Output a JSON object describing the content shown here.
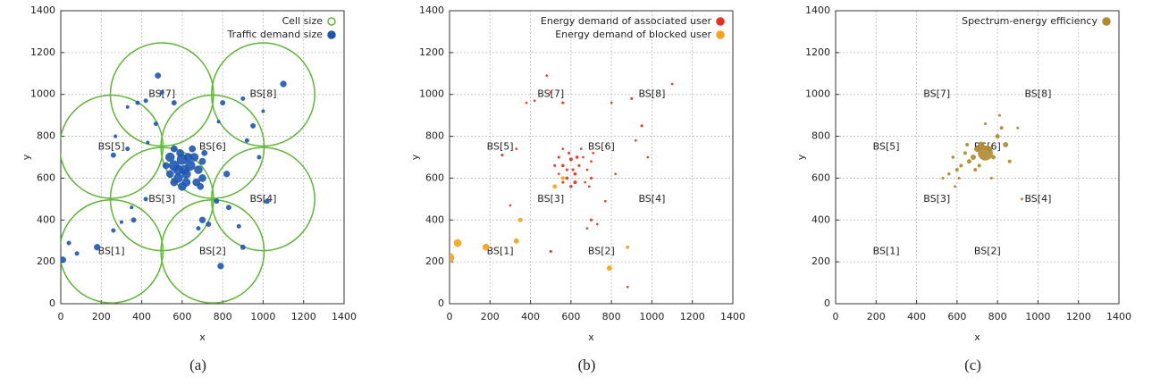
{
  "chart_data": [
    {
      "type": "scatter",
      "caption": "(a)",
      "xlabel": "x",
      "ylabel": "y",
      "xlim": [
        0,
        1400
      ],
      "ylim": [
        0,
        1400
      ],
      "xticks": [
        0,
        200,
        400,
        600,
        800,
        1000,
        1200,
        1400
      ],
      "yticks": [
        0,
        200,
        400,
        600,
        800,
        1000,
        1200,
        1400
      ],
      "grid": true,
      "legend": "top-right",
      "annotations": [
        {
          "text": "BS[1]",
          "x": 250,
          "y": 250
        },
        {
          "text": "BS[2]",
          "x": 750,
          "y": 250
        },
        {
          "text": "BS[3]",
          "x": 500,
          "y": 500
        },
        {
          "text": "BS[4]",
          "x": 1000,
          "y": 500
        },
        {
          "text": "BS[5]",
          "x": 250,
          "y": 750
        },
        {
          "text": "BS[6]",
          "x": 750,
          "y": 750
        },
        {
          "text": "BS[7]",
          "x": 500,
          "y": 1000
        },
        {
          "text": "BS[8]",
          "x": 1000,
          "y": 1000
        }
      ],
      "series": [
        {
          "name": "Cell size",
          "color": "#5db535",
          "marker": "open",
          "x": [
            250,
            750,
            500,
            1000,
            250,
            750,
            500,
            1000
          ],
          "y": [
            250,
            250,
            500,
            500,
            750,
            750,
            1000,
            1000
          ],
          "sizes": [
            255,
            255,
            255,
            255,
            255,
            255,
            255,
            255
          ]
        },
        {
          "name": "Traffic demand size",
          "color": "#1f56b0",
          "marker": "filled",
          "x": [
            540,
            560,
            580,
            600,
            620,
            640,
            660,
            580,
            620,
            560,
            680,
            700,
            540,
            600,
            650,
            590,
            700,
            520,
            630,
            670,
            560,
            610,
            710,
            690,
            180,
            40,
            10,
            360,
            420,
            480,
            500,
            560,
            800,
            900,
            1000,
            1100,
            380,
            330,
            260,
            330,
            270,
            790,
            900,
            880,
            300,
            260,
            700,
            730,
            680,
            770,
            950,
            920,
            820,
            980,
            1020,
            830,
            80,
            350,
            420,
            780,
            470,
            430
          ],
          "y": [
            700,
            660,
            640,
            690,
            620,
            660,
            700,
            600,
            580,
            580,
            640,
            600,
            620,
            560,
            740,
            720,
            680,
            660,
            700,
            580,
            740,
            640,
            720,
            560,
            270,
            290,
            210,
            400,
            970,
            1090,
            1010,
            960,
            960,
            980,
            920,
            1050,
            960,
            940,
            710,
            740,
            800,
            180,
            270,
            370,
            390,
            350,
            400,
            380,
            360,
            490,
            850,
            780,
            620,
            700,
            490,
            460,
            240,
            460,
            500,
            870,
            860,
            770
          ],
          "sizes": [
            22,
            25,
            24,
            26,
            22,
            24,
            20,
            22,
            20,
            18,
            20,
            18,
            18,
            20,
            16,
            18,
            16,
            16,
            20,
            18,
            16,
            22,
            14,
            16,
            15,
            10,
            15,
            12,
            10,
            14,
            10,
            12,
            12,
            10,
            8,
            15,
            10,
            8,
            12,
            10,
            8,
            15,
            12,
            10,
            8,
            10,
            15,
            12,
            10,
            12,
            12,
            10,
            15,
            10,
            12,
            12,
            10,
            8,
            10,
            8,
            10,
            8
          ]
        }
      ]
    },
    {
      "type": "scatter",
      "caption": "(b)",
      "xlabel": "x",
      "ylabel": "y",
      "xlim": [
        0,
        1400
      ],
      "ylim": [
        0,
        1400
      ],
      "xticks": [
        0,
        200,
        400,
        600,
        800,
        1000,
        1200,
        1400
      ],
      "yticks": [
        0,
        200,
        400,
        600,
        800,
        1000,
        1200,
        1400
      ],
      "grid": true,
      "legend": "top-right",
      "annotations": [
        {
          "text": "BS[1]",
          "x": 250,
          "y": 250
        },
        {
          "text": "BS[2]",
          "x": 750,
          "y": 250
        },
        {
          "text": "BS[3]",
          "x": 500,
          "y": 500
        },
        {
          "text": "BS[4]",
          "x": 1000,
          "y": 500
        },
        {
          "text": "BS[5]",
          "x": 250,
          "y": 750
        },
        {
          "text": "BS[6]",
          "x": 750,
          "y": 750
        },
        {
          "text": "BS[7]",
          "x": 500,
          "y": 1000
        },
        {
          "text": "BS[8]",
          "x": 1000,
          "y": 1000
        }
      ],
      "series": [
        {
          "name": "Energy demand of associated user",
          "color": "#e8301c",
          "marker": "filled",
          "x": [
            540,
            560,
            580,
            600,
            620,
            640,
            660,
            580,
            620,
            560,
            680,
            700,
            540,
            600,
            650,
            590,
            700,
            520,
            630,
            670,
            560,
            610,
            710,
            690,
            420,
            480,
            500,
            560,
            800,
            900,
            1100,
            380,
            260,
            330,
            700,
            730,
            680,
            770,
            950,
            920,
            820,
            980,
            880,
            300,
            500
          ],
          "y": [
            700,
            660,
            640,
            690,
            620,
            660,
            700,
            600,
            580,
            580,
            640,
            600,
            620,
            560,
            740,
            720,
            680,
            660,
            700,
            580,
            740,
            640,
            720,
            560,
            970,
            1090,
            1010,
            960,
            960,
            980,
            1050,
            960,
            710,
            740,
            400,
            380,
            360,
            490,
            850,
            780,
            620,
            700,
            80,
            470,
            250
          ],
          "sizes": [
            6,
            7,
            6,
            8,
            7,
            6,
            5,
            7,
            8,
            6,
            5,
            6,
            5,
            7,
            5,
            6,
            5,
            6,
            7,
            5,
            5,
            6,
            5,
            5,
            5,
            5,
            6,
            6,
            5,
            6,
            5,
            5,
            6,
            5,
            6,
            5,
            5,
            5,
            6,
            5,
            5,
            5,
            5,
            5,
            6
          ]
        },
        {
          "name": "Energy demand of blocked user",
          "color": "#f5a21c",
          "marker": "filled",
          "x": [
            0,
            40,
            180,
            350,
            330,
            790,
            880,
            520,
            560
          ],
          "y": [
            220,
            290,
            270,
            400,
            300,
            170,
            270,
            560,
            600
          ],
          "sizes": [
            22,
            18,
            16,
            10,
            12,
            12,
            8,
            10,
            8
          ]
        }
      ]
    },
    {
      "type": "scatter",
      "caption": "(c)",
      "xlabel": "x",
      "ylabel": "y",
      "xlim": [
        0,
        1400
      ],
      "ylim": [
        0,
        1400
      ],
      "xticks": [
        0,
        200,
        400,
        600,
        800,
        1000,
        1200,
        1400
      ],
      "yticks": [
        0,
        200,
        400,
        600,
        800,
        1000,
        1200,
        1400
      ],
      "grid": true,
      "legend": "top-right",
      "annotations": [
        {
          "text": "BS[1]",
          "x": 250,
          "y": 250
        },
        {
          "text": "BS[2]",
          "x": 750,
          "y": 250
        },
        {
          "text": "BS[3]",
          "x": 500,
          "y": 500
        },
        {
          "text": "BS[4]",
          "x": 1000,
          "y": 500
        },
        {
          "text": "BS[5]",
          "x": 250,
          "y": 750
        },
        {
          "text": "BS[6]",
          "x": 750,
          "y": 750
        },
        {
          "text": "BS[7]",
          "x": 500,
          "y": 1000
        },
        {
          "text": "BS[8]",
          "x": 1000,
          "y": 1000
        }
      ],
      "series": [
        {
          "name": "Spectrum-energy efficiency",
          "color": "#b08a30",
          "marker": "filled",
          "x": [
            740,
            700,
            680,
            660,
            640,
            620,
            600,
            580,
            560,
            720,
            760,
            780,
            800,
            820,
            840,
            860,
            900,
            650,
            690,
            610,
            590,
            710,
            770,
            530,
            920,
            740,
            810
          ],
          "y": [
            720,
            740,
            700,
            680,
            720,
            660,
            640,
            700,
            620,
            760,
            740,
            700,
            800,
            840,
            760,
            680,
            840,
            760,
            640,
            600,
            560,
            660,
            600,
            600,
            500,
            860,
            900
          ],
          "sizes": [
            36,
            14,
            12,
            10,
            8,
            8,
            8,
            7,
            7,
            14,
            12,
            10,
            10,
            8,
            12,
            8,
            6,
            8,
            8,
            6,
            6,
            8,
            6,
            6,
            6,
            6,
            6
          ]
        }
      ]
    }
  ]
}
